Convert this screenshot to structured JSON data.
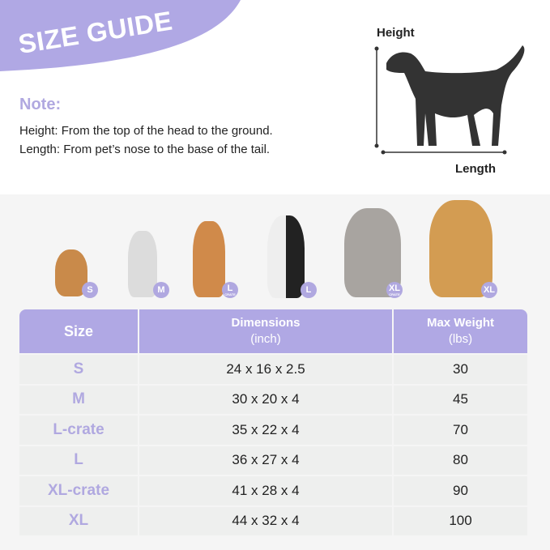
{
  "header": {
    "title": "SIZE GUIDE",
    "note_label": "Note:",
    "notes": [
      "Height: From the top of the head to the ground.",
      "Length: From pet’s nose to the base of the tail."
    ]
  },
  "diagram": {
    "height_label": "Height",
    "length_label": "Length"
  },
  "dogs": [
    {
      "badge": "S",
      "sub": ""
    },
    {
      "badge": "M",
      "sub": ""
    },
    {
      "badge": "L",
      "sub": "CRATE"
    },
    {
      "badge": "L",
      "sub": ""
    },
    {
      "badge": "XL",
      "sub": "CRATE"
    },
    {
      "badge": "XL",
      "sub": ""
    }
  ],
  "table": {
    "headers": [
      "Size",
      "Dimensions",
      "(inch)",
      "Max Weight",
      "(lbs)"
    ],
    "rows": [
      [
        "S",
        "24 x 16 x 2.5",
        "30"
      ],
      [
        "M",
        "30 x 20 x 4",
        "45"
      ],
      [
        "L-crate",
        "35 x 22 x 4",
        "70"
      ],
      [
        "L",
        "36 x 27 x 4",
        "80"
      ],
      [
        "XL-crate",
        "41 x 28 x 4",
        "90"
      ],
      [
        "XL",
        "44 x 32 x 4",
        "100"
      ]
    ]
  },
  "colors": {
    "accent": "#b0a8e4",
    "background": "#f5f5f5",
    "row": "#eeefee"
  }
}
